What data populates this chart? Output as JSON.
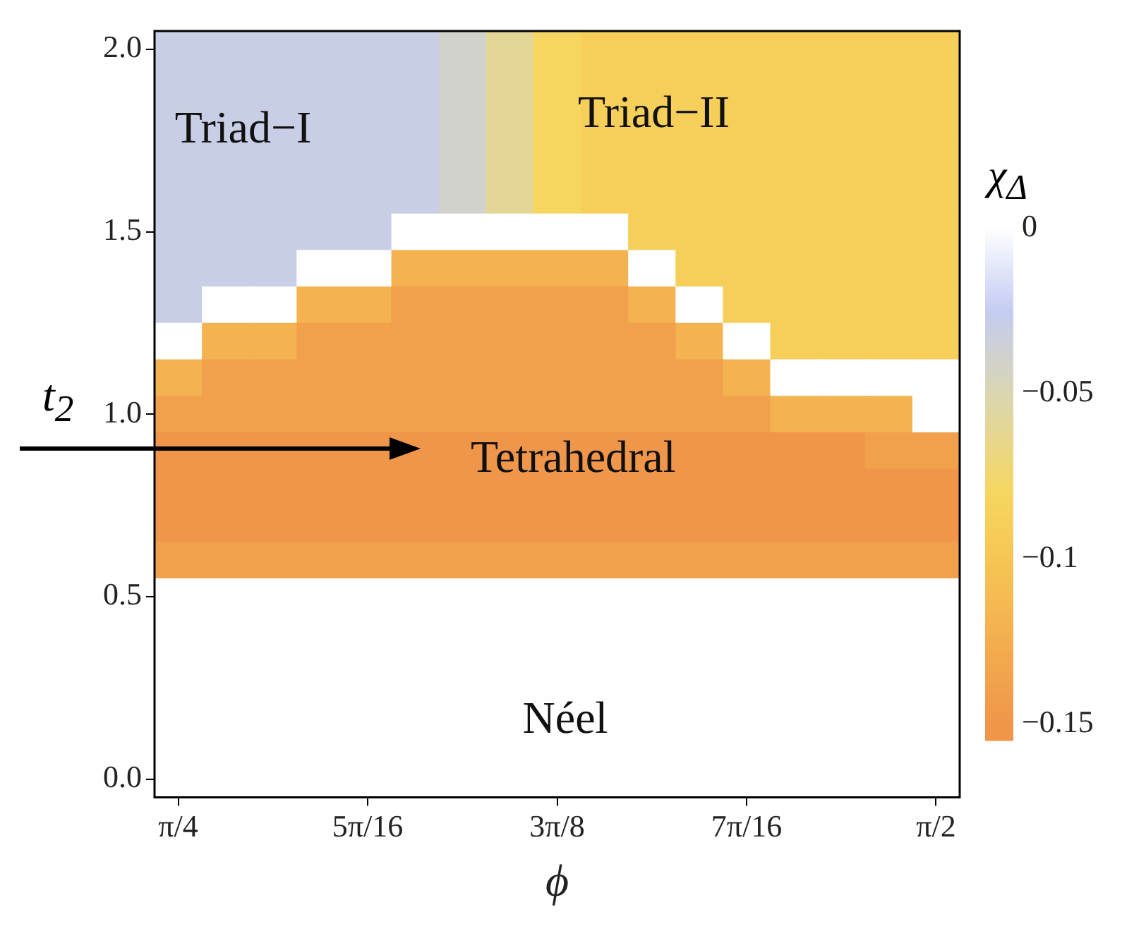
{
  "chart_data": {
    "type": "heatmap",
    "xlabel": "ϕ",
    "ylabel": "t$_{2}$",
    "clabel": "χ$_{Δ}$",
    "categories": [
      "π/4",
      null,
      null,
      null,
      "5π/16",
      null,
      null,
      null,
      "3π/8",
      null,
      null,
      null,
      "7π/16",
      null,
      null,
      null,
      "π/2"
    ],
    "y_categories": [
      "2.0",
      null,
      null,
      null,
      null,
      "1.5",
      null,
      null,
      null,
      null,
      "1.0",
      null,
      null,
      null,
      null,
      "0.5",
      null,
      null,
      null,
      null,
      "0.0"
    ],
    "clim": [
      -0.155,
      0.005
    ],
    "cticks": [
      {
        "value": 0,
        "label": "0"
      },
      {
        "value": -0.05,
        "label": "−0.05"
      },
      {
        "value": -0.1,
        "label": "−0.1"
      },
      {
        "value": -0.15,
        "label": "−0.15"
      }
    ],
    "cells": [
      [
        -0.03,
        -0.03,
        -0.03,
        -0.03,
        -0.03,
        -0.03,
        -0.04,
        -0.06,
        -0.08,
        -0.09,
        -0.09,
        -0.09,
        -0.09,
        -0.09,
        -0.09,
        -0.09,
        -0.09
      ],
      [
        -0.03,
        -0.03,
        -0.03,
        -0.03,
        -0.03,
        -0.03,
        -0.04,
        -0.06,
        -0.08,
        -0.09,
        -0.09,
        -0.09,
        -0.09,
        -0.09,
        -0.09,
        -0.09,
        -0.09
      ],
      [
        -0.03,
        -0.03,
        -0.03,
        -0.03,
        -0.03,
        -0.03,
        -0.04,
        -0.06,
        -0.08,
        -0.09,
        -0.09,
        -0.09,
        -0.09,
        -0.09,
        -0.09,
        -0.09,
        -0.09
      ],
      [
        -0.03,
        -0.03,
        -0.03,
        -0.03,
        -0.03,
        -0.03,
        -0.04,
        -0.06,
        -0.08,
        -0.09,
        -0.09,
        -0.09,
        -0.09,
        -0.09,
        -0.09,
        -0.09,
        -0.09
      ],
      [
        -0.03,
        -0.03,
        -0.03,
        -0.03,
        -0.03,
        -0.03,
        -0.04,
        -0.06,
        -0.08,
        -0.09,
        -0.09,
        -0.09,
        -0.09,
        -0.09,
        -0.09,
        -0.09,
        -0.09
      ],
      [
        -0.03,
        -0.03,
        -0.03,
        -0.03,
        -0.03,
        0,
        0,
        0,
        0,
        0,
        -0.09,
        -0.09,
        -0.09,
        -0.09,
        -0.09,
        -0.09,
        -0.09
      ],
      [
        -0.03,
        -0.03,
        -0.03,
        0,
        0,
        -0.12,
        -0.12,
        -0.12,
        -0.12,
        -0.12,
        0,
        -0.09,
        -0.09,
        -0.09,
        -0.09,
        -0.09,
        -0.09
      ],
      [
        -0.03,
        0,
        0,
        -0.12,
        -0.12,
        -0.14,
        -0.14,
        -0.14,
        -0.14,
        -0.14,
        -0.12,
        0,
        -0.09,
        -0.09,
        -0.09,
        -0.09,
        -0.09
      ],
      [
        0,
        -0.12,
        -0.12,
        -0.14,
        -0.14,
        -0.14,
        -0.14,
        -0.14,
        -0.14,
        -0.14,
        -0.14,
        -0.12,
        0,
        -0.09,
        -0.09,
        -0.09,
        -0.09
      ],
      [
        -0.12,
        -0.14,
        -0.14,
        -0.14,
        -0.14,
        -0.14,
        -0.14,
        -0.14,
        -0.14,
        -0.14,
        -0.14,
        -0.14,
        -0.12,
        0,
        0,
        0,
        0
      ],
      [
        -0.14,
        -0.14,
        -0.14,
        -0.14,
        -0.14,
        -0.14,
        -0.14,
        -0.14,
        -0.14,
        -0.14,
        -0.14,
        -0.14,
        -0.14,
        -0.12,
        -0.12,
        -0.12,
        0
      ],
      [
        -0.15,
        -0.15,
        -0.15,
        -0.15,
        -0.15,
        -0.15,
        -0.15,
        -0.15,
        -0.15,
        -0.15,
        -0.15,
        -0.15,
        -0.15,
        -0.15,
        -0.15,
        -0.14,
        -0.14
      ],
      [
        -0.15,
        -0.15,
        -0.15,
        -0.15,
        -0.15,
        -0.15,
        -0.15,
        -0.15,
        -0.15,
        -0.15,
        -0.15,
        -0.15,
        -0.15,
        -0.15,
        -0.15,
        -0.15,
        -0.15
      ],
      [
        -0.15,
        -0.15,
        -0.15,
        -0.15,
        -0.15,
        -0.15,
        -0.15,
        -0.15,
        -0.15,
        -0.15,
        -0.15,
        -0.15,
        -0.15,
        -0.15,
        -0.15,
        -0.15,
        -0.15
      ],
      [
        -0.14,
        -0.14,
        -0.14,
        -0.14,
        -0.14,
        -0.14,
        -0.14,
        -0.14,
        -0.14,
        -0.14,
        -0.14,
        -0.14,
        -0.14,
        -0.14,
        -0.14,
        -0.14,
        -0.14
      ],
      [
        0,
        0,
        0,
        0,
        0,
        0,
        0,
        0,
        0,
        0,
        0,
        0,
        0,
        0,
        0,
        0,
        0
      ],
      [
        0,
        0,
        0,
        0,
        0,
        0,
        0,
        0,
        0,
        0,
        0,
        0,
        0,
        0,
        0,
        0,
        0
      ],
      [
        0,
        0,
        0,
        0,
        0,
        0,
        0,
        0,
        0,
        0,
        0,
        0,
        0,
        0,
        0,
        0,
        0
      ],
      [
        0,
        0,
        0,
        0,
        0,
        0,
        0,
        0,
        0,
        0,
        0,
        0,
        0,
        0,
        0,
        0,
        0
      ],
      [
        0,
        0,
        0,
        0,
        0,
        0,
        0,
        0,
        0,
        0,
        0,
        0,
        0,
        0,
        0,
        0,
        0
      ],
      [
        0,
        0,
        0,
        0,
        0,
        0,
        0,
        0,
        0,
        0,
        0,
        0,
        0,
        0,
        0,
        0,
        0
      ]
    ],
    "annotations": [
      "Triad−I",
      "Triad−II",
      "Tetrahedral",
      "Néel"
    ]
  }
}
